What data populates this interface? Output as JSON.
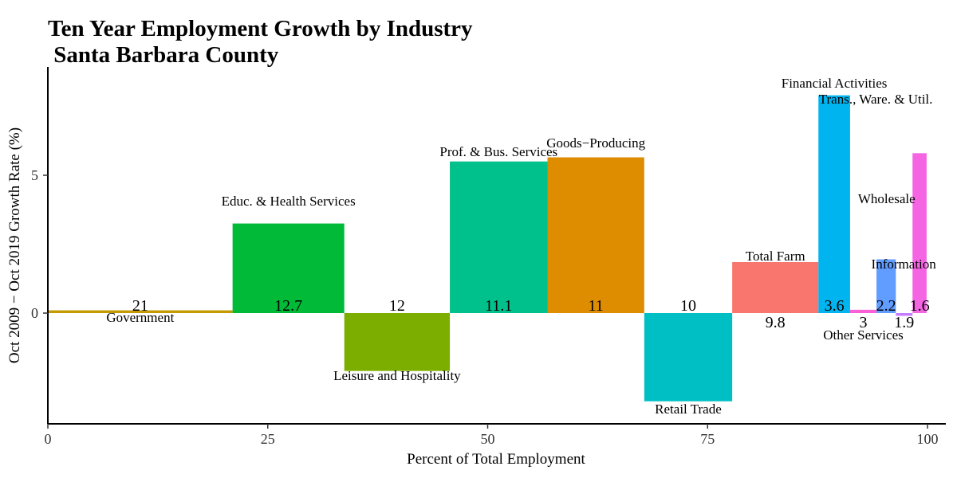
{
  "chart_data": {
    "type": "bar",
    "title": "Ten Year Employment Growth by Industry",
    "subtitle": " Santa Barbara County",
    "xlabel": "Percent of Total Employment",
    "ylabel": "Oct 2009 − Oct 2019 Growth Rate (%)",
    "xlim": [
      0,
      100
    ],
    "ylim": [
      -4,
      9
    ],
    "x_ticks": [
      "0",
      "25",
      "50",
      "75",
      "100"
    ],
    "y_ticks": [
      "0",
      "5"
    ],
    "grid": false,
    "legend": "none",
    "series": [
      {
        "name": "Government",
        "share": 21,
        "share_label": "21",
        "growth": 0.1,
        "color": "#C49A00"
      },
      {
        "name": "Educ. & Health Services",
        "share": 12.7,
        "share_label": "12.7",
        "growth": 3.25,
        "color": "#00BA38"
      },
      {
        "name": "Leisure and Hospitality",
        "share": 12,
        "share_label": "12",
        "growth": -2.1,
        "color": "#7CAE00"
      },
      {
        "name": "Prof. & Bus. Services",
        "share": 11.1,
        "share_label": "11.1",
        "growth": 5.5,
        "color": "#00C08B"
      },
      {
        "name": "Goods−Producing",
        "share": 11,
        "share_label": "11",
        "growth": 5.65,
        "color": "#DE8C00"
      },
      {
        "name": "Retail Trade",
        "share": 10,
        "share_label": "10",
        "growth": -3.2,
        "color": "#00BFC4"
      },
      {
        "name": "Total Farm",
        "share": 9.8,
        "share_label": "9.8",
        "growth": 1.85,
        "color": "#F8766D"
      },
      {
        "name": "Financial Activities",
        "share": 3.6,
        "share_label": "3.6",
        "growth": 7.9,
        "color": "#00B4F0"
      },
      {
        "name": "Other Services",
        "share": 3,
        "share_label": "3",
        "growth": 0.12,
        "color": "#FB61D7"
      },
      {
        "name": "Information",
        "share": 2.2,
        "share_label": "2.2",
        "growth": 1.95,
        "color": "#619CFF"
      },
      {
        "name": "Wholesale",
        "share": 1.9,
        "share_label": "1.9",
        "growth": -0.1,
        "color": "#C77CFF"
      },
      {
        "name": "Trans., Ware. & Util.",
        "share": 1.6,
        "share_label": "1.6",
        "growth": 5.8,
        "color": "#F564E3"
      }
    ]
  }
}
